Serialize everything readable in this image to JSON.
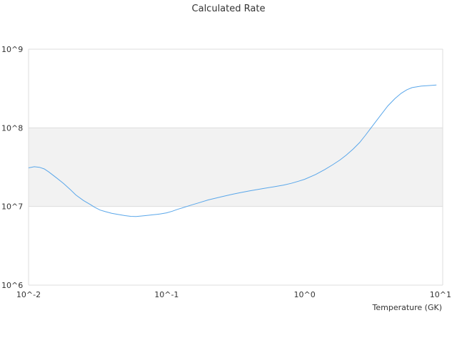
{
  "chart_data": {
    "type": "line",
    "title": "Calculated Rate",
    "xlabel": "Temperature (GK)",
    "ylabel": "",
    "x_scale": "log",
    "y_scale": "log",
    "xlim": [
      0.01,
      10
    ],
    "ylim": [
      1000000,
      1000000000
    ],
    "grid": true,
    "x_ticks": [
      {
        "value": 0.01,
        "label": "10^-2"
      },
      {
        "value": 0.1,
        "label": "10^-1"
      },
      {
        "value": 1,
        "label": "10^0"
      },
      {
        "value": 10,
        "label": "10^1"
      }
    ],
    "y_ticks": [
      {
        "value": 1000000,
        "label": "10^6"
      },
      {
        "value": 10000000,
        "label": "10^7"
      },
      {
        "value": 100000000,
        "label": "10^8"
      },
      {
        "value": 1000000000,
        "label": "10^9"
      }
    ],
    "shaded_band": [
      10000000,
      100000000
    ],
    "colors": {
      "line": "#5aa7ea",
      "band": "#f2f2f2",
      "grid": "#dddddd",
      "text": "#333333"
    },
    "series": [
      {
        "name": "",
        "x": [
          0.01,
          0.011,
          0.012,
          0.013,
          0.014,
          0.016,
          0.018,
          0.02,
          0.022,
          0.025,
          0.028,
          0.03,
          0.033,
          0.036,
          0.04,
          0.045,
          0.05,
          0.055,
          0.06,
          0.065,
          0.07,
          0.075,
          0.08,
          0.085,
          0.09,
          0.1,
          0.11,
          0.12,
          0.13,
          0.15,
          0.17,
          0.2,
          0.25,
          0.3,
          0.35,
          0.4,
          0.5,
          0.6,
          0.7,
          0.8,
          0.9,
          1.0,
          1.2,
          1.4,
          1.6,
          1.8,
          2.0,
          2.25,
          2.5,
          2.75,
          3.0,
          3.5,
          4.0,
          4.5,
          5.0,
          5.5,
          6.0,
          7.0,
          8.0,
          9.0
        ],
        "y": [
          31000000,
          32000000,
          31500000,
          30000000,
          27500000,
          23000000,
          19500000,
          16500000,
          14000000,
          11900000,
          10600000,
          9800000,
          9000000,
          8600000,
          8200000,
          7900000,
          7650000,
          7500000,
          7450000,
          7550000,
          7650000,
          7750000,
          7850000,
          7950000,
          8050000,
          8300000,
          8700000,
          9200000,
          9600000,
          10400000,
          11100000,
          12100000,
          13300000,
          14300000,
          15100000,
          15800000,
          16900000,
          17800000,
          18700000,
          19700000,
          20900000,
          22200000,
          25500000,
          29500000,
          34000000,
          39000000,
          45000000,
          54000000,
          65000000,
          80000000,
          98000000,
          140000000,
          190000000,
          235000000,
          275000000,
          305000000,
          325000000,
          340000000,
          345000000,
          350000000
        ]
      }
    ]
  }
}
